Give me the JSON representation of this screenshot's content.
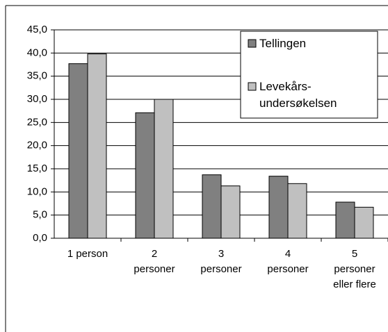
{
  "chart_data": {
    "type": "bar",
    "categories": [
      "1 person",
      "2\npersoner",
      "3\npersoner",
      "4\npersoner",
      "5\npersoner\neller flere"
    ],
    "series": [
      {
        "name": "Tellingen",
        "color": "#808080",
        "values": [
          37.7,
          27.1,
          13.7,
          13.4,
          7.8
        ]
      },
      {
        "name": "Levekårs-\nundersøkelsen",
        "color": "#c0c0c0",
        "values": [
          39.8,
          30.0,
          11.3,
          11.8,
          6.7
        ]
      }
    ],
    "ylim": [
      0,
      45
    ],
    "yticks": [
      {
        "value": 0,
        "label": "0,0"
      },
      {
        "value": 5,
        "label": "5,0"
      },
      {
        "value": 10,
        "label": "10,0"
      },
      {
        "value": 15,
        "label": "15,0"
      },
      {
        "value": 20,
        "label": "20,0"
      },
      {
        "value": 25,
        "label": "25,0"
      },
      {
        "value": 30,
        "label": "30,0"
      },
      {
        "value": 35,
        "label": "35,0"
      },
      {
        "value": 40,
        "label": "40,0"
      },
      {
        "value": 45,
        "label": "45,0"
      }
    ],
    "grid": true
  }
}
